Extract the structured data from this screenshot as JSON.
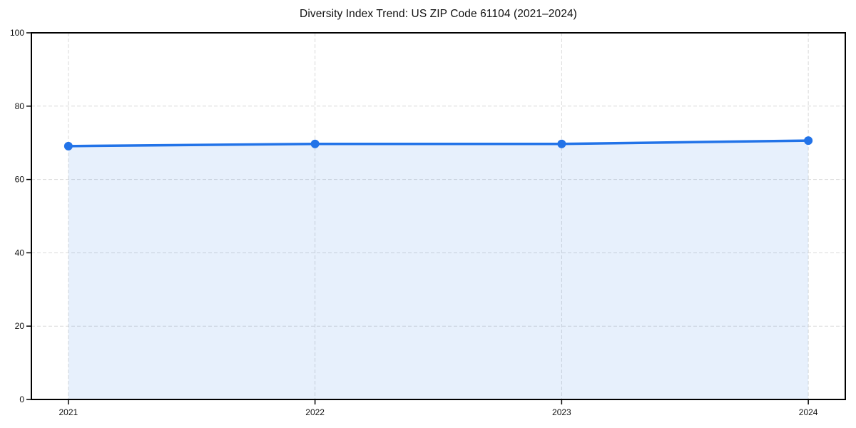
{
  "chart_data": {
    "type": "line",
    "title": "Diversity Index Trend: US ZIP Code 61104 (2021–2024)",
    "x": [
      2021,
      2022,
      2023,
      2024
    ],
    "series": [
      {
        "name": "Diversity Index",
        "values": [
          69.1,
          69.7,
          69.7,
          70.6
        ]
      }
    ],
    "xlabel": "",
    "ylabel": "",
    "ylim": [
      0,
      100
    ],
    "yticks": [
      0,
      20,
      40,
      60,
      80,
      100
    ],
    "grid": true,
    "legend": "none",
    "area_fill": true,
    "marker": "circle",
    "colors": {
      "line": "#2273e8",
      "marker": "#2273e8",
      "area_fill": "rgba(34, 115, 232, 0.11)",
      "grid": "#d9d9d9",
      "spine": "#000000",
      "tick_label": "#111111",
      "title": "#111111",
      "background": "#ffffff"
    }
  }
}
